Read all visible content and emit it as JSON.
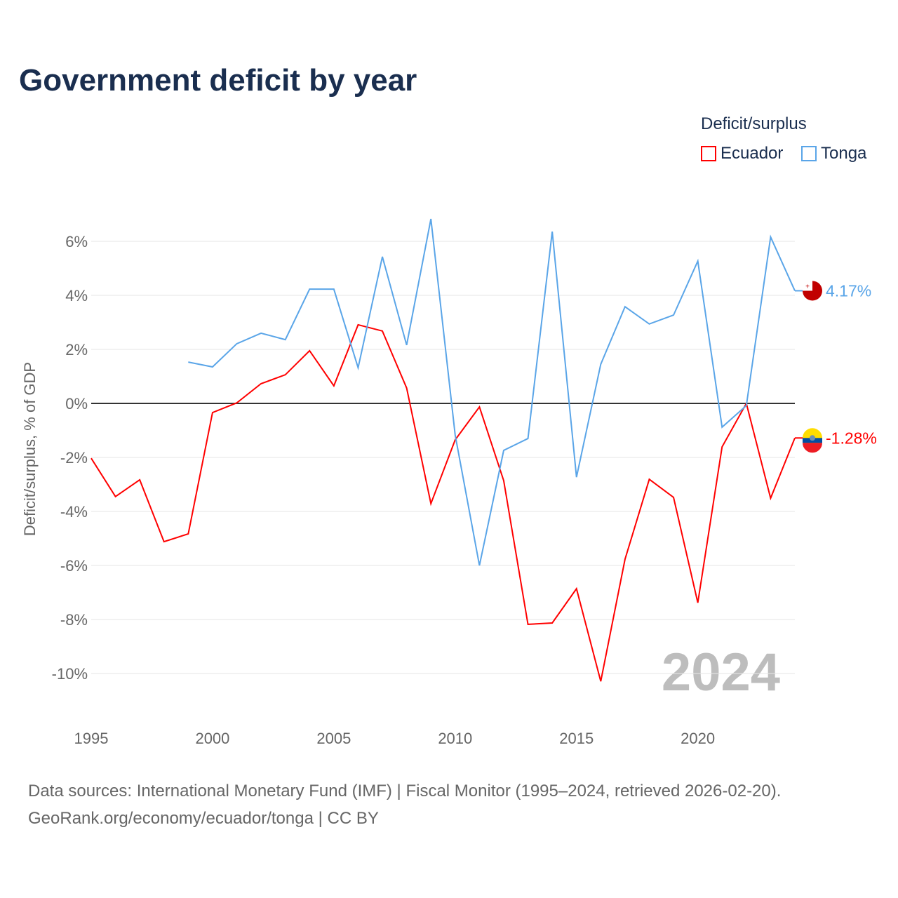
{
  "title": "Government deficit by year",
  "legend": {
    "title": "Deficit/surplus",
    "items": [
      {
        "label": "Ecuador",
        "color": "#ff0000"
      },
      {
        "label": "Tonga",
        "color": "#5aa5e8"
      }
    ]
  },
  "source_line1": "Data sources: International Monetary Fund (IMF) | Fiscal Monitor (1995–2024, retrieved 2026-02-20).",
  "source_line2": "GeoRank.org/economy/ecuador/tonga | CC BY",
  "chart_data": {
    "type": "line",
    "title": "Government deficit by year",
    "xlabel": "",
    "ylabel": "Deficit/surplus, % of GDP",
    "xlim": [
      1995,
      2024
    ],
    "ylim": [
      -11,
      7
    ],
    "y_ticks": [
      -10,
      -8,
      -6,
      -4,
      -2,
      0,
      2,
      4,
      6
    ],
    "y_tick_labels": [
      "-10%",
      "-8%",
      "-6%",
      "-4%",
      "-2%",
      "0%",
      "2%",
      "4%",
      "6%"
    ],
    "x_ticks": [
      1995,
      2000,
      2005,
      2010,
      2015,
      2020
    ],
    "x_tick_labels": [
      "1995",
      "2000",
      "2005",
      "2010",
      "2015",
      "2020"
    ],
    "watermark_year": "2024",
    "grid": true,
    "legend_position": "top-right",
    "series": [
      {
        "name": "Ecuador",
        "color": "#ff0000",
        "end_label": "-1.28%",
        "x": [
          1995,
          1996,
          1997,
          1998,
          1999,
          2000,
          2001,
          2002,
          2003,
          2004,
          2005,
          2006,
          2007,
          2008,
          2009,
          2010,
          2011,
          2012,
          2013,
          2014,
          2015,
          2016,
          2017,
          2018,
          2019,
          2020,
          2021,
          2022,
          2023,
          2024
        ],
        "values": [
          -2.03,
          -3.45,
          -2.83,
          -5.12,
          -4.83,
          -0.34,
          0.02,
          0.73,
          1.06,
          1.95,
          0.65,
          2.91,
          2.68,
          0.57,
          -3.71,
          -1.35,
          -0.13,
          -2.86,
          -8.18,
          -8.13,
          -6.86,
          -10.29,
          -5.77,
          -2.81,
          -3.48,
          -7.38,
          -1.61,
          0.0,
          -3.51,
          -1.28
        ]
      },
      {
        "name": "Tonga",
        "color": "#5aa5e8",
        "end_label": "4.17%",
        "x": [
          1999,
          2000,
          2001,
          2002,
          2003,
          2004,
          2005,
          2006,
          2007,
          2008,
          2009,
          2010,
          2011,
          2012,
          2013,
          2014,
          2015,
          2016,
          2017,
          2018,
          2019,
          2020,
          2021,
          2022,
          2023,
          2024
        ],
        "values": [
          1.53,
          1.35,
          2.21,
          2.6,
          2.36,
          4.23,
          4.23,
          1.32,
          5.43,
          2.16,
          6.83,
          -1.17,
          -6.0,
          -1.74,
          -1.3,
          6.36,
          -2.73,
          1.45,
          3.58,
          2.94,
          3.27,
          5.27,
          -0.88,
          -0.08,
          6.16,
          4.17
        ]
      }
    ]
  }
}
